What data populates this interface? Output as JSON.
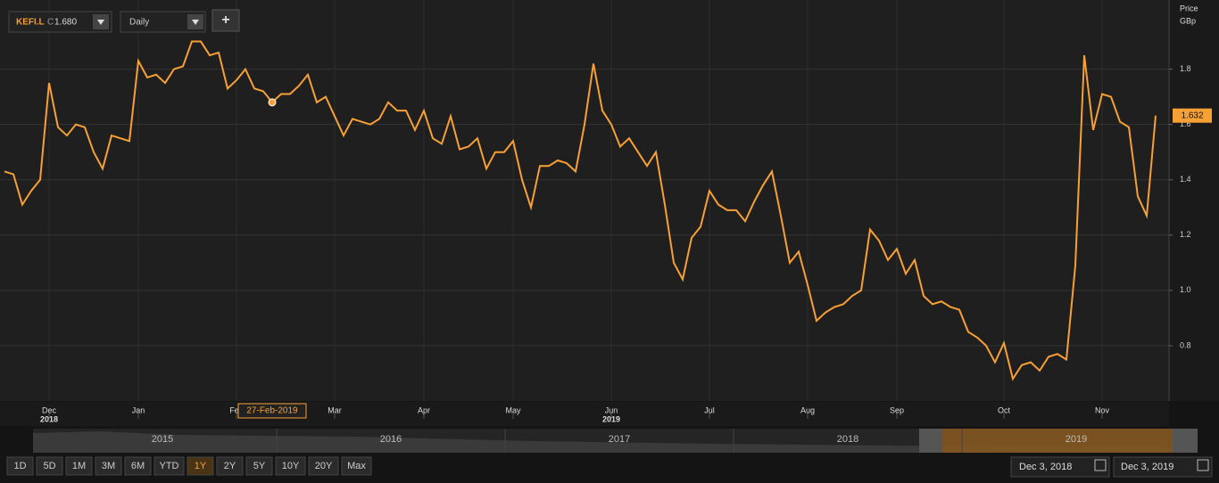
{
  "toolbar": {
    "symbol": "KEFI.L",
    "close_prefix": "C",
    "close": "1.680",
    "interval": "Daily",
    "add": "+"
  },
  "chart_data": {
    "type": "line",
    "axis_title": "Price",
    "axis_unit": "GBp",
    "color": "#f7a035",
    "grid": true,
    "values": [
      1.43,
      1.42,
      1.31,
      1.36,
      1.4,
      1.75,
      1.59,
      1.56,
      1.6,
      1.59,
      1.5,
      1.44,
      1.56,
      1.55,
      1.54,
      1.83,
      1.77,
      1.78,
      1.75,
      1.8,
      1.81,
      1.9,
      1.9,
      1.85,
      1.86,
      1.73,
      1.76,
      1.8,
      1.73,
      1.72,
      1.68,
      1.71,
      1.71,
      1.74,
      1.78,
      1.68,
      1.7,
      1.63,
      1.56,
      1.62,
      1.61,
      1.6,
      1.62,
      1.68,
      1.65,
      1.65,
      1.58,
      1.65,
      1.55,
      1.53,
      1.63,
      1.51,
      1.52,
      1.55,
      1.44,
      1.5,
      1.5,
      1.54,
      1.4,
      1.3,
      1.45,
      1.45,
      1.47,
      1.46,
      1.43,
      1.6,
      1.82,
      1.65,
      1.6,
      1.52,
      1.55,
      1.5,
      1.45,
      1.5,
      1.31,
      1.1,
      1.04,
      1.19,
      1.23,
      1.36,
      1.31,
      1.29,
      1.29,
      1.25,
      1.32,
      1.38,
      1.43,
      1.27,
      1.1,
      1.14,
      1.02,
      0.89,
      0.92,
      0.94,
      0.95,
      0.98,
      1.0,
      1.22,
      1.18,
      1.11,
      1.15,
      1.06,
      1.11,
      0.98,
      0.95,
      0.96,
      0.94,
      0.93,
      0.85,
      0.83,
      0.8,
      0.74,
      0.81,
      0.68,
      0.73,
      0.74,
      0.71,
      0.76,
      0.77,
      0.75,
      1.09,
      1.85,
      1.58,
      1.71,
      1.7,
      1.61,
      1.59,
      1.34,
      1.27,
      1.632
    ],
    "categories": [
      null,
      null,
      null,
      null,
      null,
      "Dec",
      null,
      null,
      null,
      null,
      null,
      null,
      null,
      null,
      null,
      "Jan",
      null,
      null,
      null,
      null,
      null,
      null,
      null,
      null,
      null,
      null,
      "Feb",
      null,
      null,
      null,
      null,
      null,
      null,
      null,
      null,
      null,
      null,
      "Mar",
      null,
      null,
      null,
      null,
      null,
      null,
      null,
      null,
      null,
      "Apr",
      null,
      null,
      null,
      null,
      null,
      null,
      null,
      null,
      null,
      "May",
      null,
      null,
      null,
      null,
      null,
      null,
      null,
      null,
      null,
      null,
      "Jun",
      null,
      null,
      null,
      null,
      null,
      null,
      null,
      null,
      null,
      null,
      "Jul",
      null,
      null,
      null,
      null,
      null,
      null,
      null,
      null,
      null,
      null,
      "Aug",
      null,
      null,
      null,
      null,
      null,
      null,
      null,
      null,
      null,
      "Sep",
      null,
      null,
      null,
      null,
      null,
      null,
      null,
      null,
      null,
      null,
      null,
      "Oct",
      null,
      null,
      null,
      null,
      null,
      null,
      null,
      null,
      null,
      null,
      "Nov",
      null,
      null,
      null,
      null,
      null,
      null
    ],
    "category_years": [
      null,
      null,
      null,
      null,
      null,
      "2018",
      null,
      null,
      null,
      null,
      null,
      null,
      null,
      null,
      null,
      null,
      null,
      null,
      null,
      null,
      null,
      null,
      null,
      null,
      null,
      null,
      null,
      null,
      null,
      null,
      null,
      null,
      null,
      null,
      null,
      null,
      null,
      null,
      null,
      null,
      null,
      null,
      null,
      null,
      null,
      null,
      null,
      null,
      null,
      null,
      null,
      null,
      null,
      null,
      null,
      null,
      null,
      null,
      null,
      null,
      null,
      null,
      null,
      null,
      null,
      null,
      null,
      null,
      "2019",
      null,
      null,
      null,
      null,
      null,
      null,
      null,
      null,
      null,
      null,
      null,
      null,
      null,
      null,
      null,
      null,
      null,
      null,
      null,
      null,
      null,
      null,
      null,
      null,
      null,
      null,
      null,
      null,
      null,
      null,
      null,
      null,
      null,
      null,
      null,
      null,
      null,
      null,
      null,
      null,
      null,
      null,
      null,
      null,
      null,
      null,
      null,
      null,
      null,
      null,
      null,
      null,
      null,
      null,
      null,
      null,
      null,
      null,
      null,
      null,
      null
    ],
    "ylim": [
      0.6,
      2.05
    ],
    "yticks": [
      0.8,
      {
        "value": 1,
        "label": "1.0"
      },
      1.2,
      1.4,
      1.6,
      1.8
    ],
    "crosshair_date": "27-Feb-2019"
  },
  "navigator": {
    "years": [
      "2015",
      "2016",
      "2017",
      "2018",
      "2019"
    ]
  },
  "ranges": {
    "buttons": [
      "1D",
      "5D",
      "1M",
      "3M",
      "6M",
      "YTD",
      "1Y",
      "2Y",
      "5Y",
      "10Y",
      "20Y",
      "Max"
    ],
    "selected": "1Y"
  },
  "date_range": {
    "from": "Dec 3, 2018",
    "to": "Dec 3, 2019"
  }
}
